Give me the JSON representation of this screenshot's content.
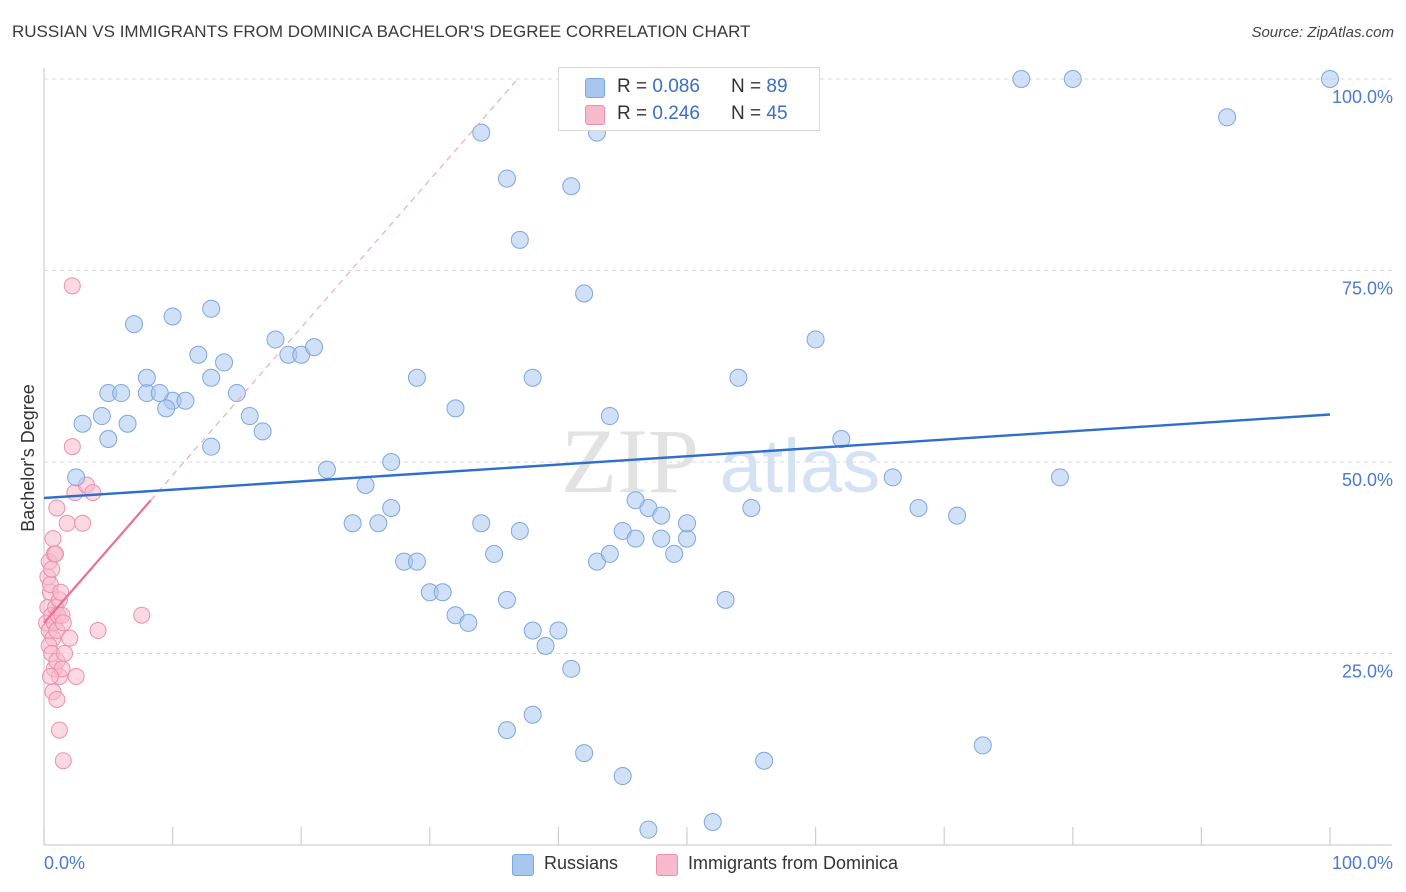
{
  "header": {
    "title": "RUSSIAN VS IMMIGRANTS FROM DOMINICA BACHELOR'S DEGREE CORRELATION CHART",
    "source": "Source: ZipAtlas.com"
  },
  "watermark": {
    "zip": "ZIP",
    "atlas": "atlas"
  },
  "legend_top": [
    {
      "r_label": "R = ",
      "r_value": "0.086",
      "n_label": "N = ",
      "n_value": "89",
      "color": "#a9c6ef"
    },
    {
      "r_label": "R = ",
      "r_value": "0.246",
      "n_label": "N = ",
      "n_value": "45",
      "color": "#f7b9cc"
    }
  ],
  "legend_bottom": [
    {
      "label": "Russians",
      "color": "#a9c6ef"
    },
    {
      "label": "Immigrants from Dominica",
      "color": "#f7b9cc"
    }
  ],
  "colors": {
    "blue_fill": "#a9c6ef",
    "blue_stroke": "#7ea6de",
    "blue_line": "#2f6fcc",
    "pink_fill": "#f7b9cc",
    "pink_stroke": "#ec8fac",
    "pink_line": "#e8709a",
    "grid": "#d9d9d9",
    "axis_text": "#4a7bd0"
  },
  "chart_data": {
    "type": "scatter",
    "title": "RUSSIAN VS IMMIGRANTS FROM DOMINICA BACHELOR'S DEGREE CORRELATION CHART",
    "xlabel": "",
    "ylabel": "Bachelor's Degree",
    "xlim": [
      0,
      100
    ],
    "ylim": [
      0,
      100
    ],
    "x_tick_labels": [
      "0.0%",
      "100.0%"
    ],
    "y_ticks": [
      25,
      50,
      75,
      100
    ],
    "y_tick_labels": [
      "25.0%",
      "50.0%",
      "75.0%",
      "100.0%"
    ],
    "series": [
      {
        "name": "Russians",
        "r": 0.086,
        "n": 89,
        "trend": {
          "x": [
            0,
            100
          ],
          "y": [
            45.3,
            56.2
          ]
        },
        "points": [
          [
            2.5,
            48
          ],
          [
            3.0,
            55
          ],
          [
            4.5,
            56
          ],
          [
            5.0,
            53
          ],
          [
            6.5,
            55
          ],
          [
            5.0,
            59
          ],
          [
            8,
            59
          ],
          [
            10,
            58
          ],
          [
            9,
            59
          ],
          [
            9.5,
            57
          ],
          [
            8,
            61
          ],
          [
            6,
            59
          ],
          [
            11,
            58
          ],
          [
            12,
            64
          ],
          [
            13,
            61
          ],
          [
            14,
            63
          ],
          [
            15,
            59
          ],
          [
            16,
            56
          ],
          [
            17,
            54
          ],
          [
            18,
            66
          ],
          [
            19,
            64
          ],
          [
            20,
            64
          ],
          [
            21,
            65
          ],
          [
            7,
            68
          ],
          [
            10,
            69
          ],
          [
            13,
            70
          ],
          [
            13,
            52
          ],
          [
            22,
            49
          ],
          [
            24,
            42
          ],
          [
            26,
            42
          ],
          [
            27,
            44
          ],
          [
            28,
            37
          ],
          [
            29,
            37
          ],
          [
            30,
            33
          ],
          [
            31,
            33
          ],
          [
            32,
            30
          ],
          [
            33,
            29
          ],
          [
            34,
            42
          ],
          [
            35,
            38
          ],
          [
            36,
            32
          ],
          [
            37,
            41
          ],
          [
            38,
            28
          ],
          [
            39,
            26
          ],
          [
            40,
            28
          ],
          [
            41,
            23
          ],
          [
            43,
            37
          ],
          [
            44,
            38
          ],
          [
            45,
            41
          ],
          [
            46,
            40
          ],
          [
            47,
            44
          ],
          [
            48,
            43
          ],
          [
            49,
            38
          ],
          [
            50,
            40
          ],
          [
            25,
            47
          ],
          [
            27,
            50
          ],
          [
            29,
            61
          ],
          [
            32,
            57
          ],
          [
            34,
            93
          ],
          [
            36,
            87
          ],
          [
            37,
            79
          ],
          [
            38,
            61
          ],
          [
            41,
            86
          ],
          [
            42,
            72
          ],
          [
            43,
            93
          ],
          [
            44,
            56
          ],
          [
            46,
            45
          ],
          [
            48,
            40
          ],
          [
            50,
            42
          ],
          [
            53,
            32
          ],
          [
            54,
            61
          ],
          [
            55,
            44
          ],
          [
            60,
            66
          ],
          [
            62,
            53
          ],
          [
            66,
            48
          ],
          [
            68,
            44
          ],
          [
            71,
            43
          ],
          [
            73,
            13
          ],
          [
            76,
            100
          ],
          [
            79,
            48
          ],
          [
            80,
            100
          ],
          [
            92,
            95
          ],
          [
            100,
            100
          ],
          [
            36,
            15
          ],
          [
            38,
            17
          ],
          [
            42,
            12
          ],
          [
            45,
            9
          ],
          [
            47,
            2
          ],
          [
            52,
            3
          ],
          [
            56,
            11
          ]
        ]
      },
      {
        "name": "Immigrants from Dominica",
        "r": 0.246,
        "n": 45,
        "trend": {
          "x": [
            0,
            8.3
          ],
          "y": [
            29,
            45
          ]
        },
        "points": [
          [
            0.2,
            29
          ],
          [
            0.3,
            31
          ],
          [
            0.4,
            28
          ],
          [
            0.5,
            33
          ],
          [
            0.6,
            30
          ],
          [
            0.7,
            27
          ],
          [
            0.8,
            29
          ],
          [
            0.9,
            31
          ],
          [
            1.0,
            28
          ],
          [
            1.1,
            30
          ],
          [
            0.3,
            35
          ],
          [
            0.4,
            37
          ],
          [
            0.5,
            34
          ],
          [
            0.6,
            36
          ],
          [
            0.7,
            40
          ],
          [
            0.8,
            38
          ],
          [
            1.2,
            32
          ],
          [
            1.3,
            33
          ],
          [
            1.4,
            30
          ],
          [
            1.5,
            29
          ],
          [
            0.4,
            26
          ],
          [
            0.6,
            25
          ],
          [
            0.8,
            23
          ],
          [
            1.0,
            24
          ],
          [
            1.2,
            22
          ],
          [
            1.4,
            23
          ],
          [
            1.6,
            25
          ],
          [
            2.0,
            27
          ],
          [
            2.5,
            22
          ],
          [
            0.5,
            22
          ],
          [
            0.7,
            20
          ],
          [
            1.0,
            19
          ],
          [
            1.2,
            15
          ],
          [
            1.5,
            11
          ],
          [
            1.8,
            42
          ],
          [
            2.2,
            52
          ],
          [
            2.4,
            46
          ],
          [
            3.0,
            42
          ],
          [
            3.3,
            47
          ],
          [
            3.8,
            46
          ],
          [
            4.2,
            28
          ],
          [
            7.6,
            30
          ],
          [
            2.2,
            73
          ],
          [
            1.0,
            44
          ],
          [
            0.9,
            38
          ]
        ]
      }
    ]
  }
}
